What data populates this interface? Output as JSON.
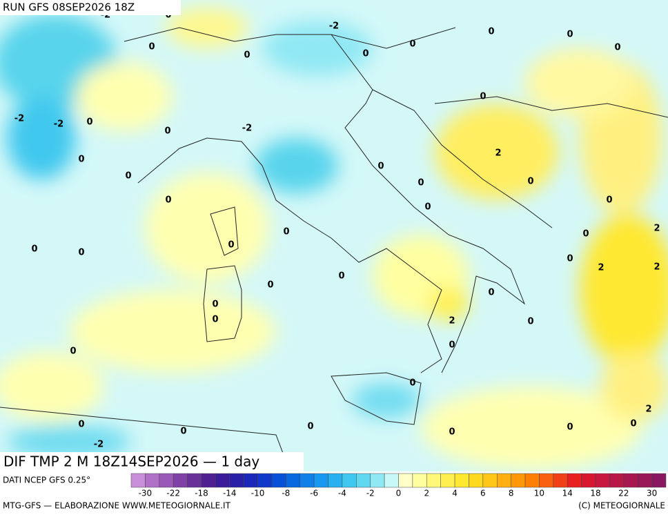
{
  "header": {
    "run": "RUN GFS 08SEP2026 18Z"
  },
  "map": {
    "title": "DIF TMP 2 M 18Z14SEP2026 — 1 day",
    "contour_labels": [
      "-2",
      "0",
      "-2",
      "0",
      "0",
      "0",
      "0",
      "0",
      "0",
      "0",
      "0",
      "-2",
      "-2",
      "0",
      "0",
      "-2",
      "2",
      "0",
      "0",
      "0",
      "0",
      "0",
      "0",
      "0",
      "0",
      "2",
      "0",
      "0",
      "0",
      "0",
      "0",
      "0",
      "2",
      "2",
      "0",
      "0",
      "0",
      "0",
      "0",
      "2",
      "0",
      "0",
      "0",
      "0",
      "2",
      "0",
      "0",
      "0",
      "0",
      "0",
      "0",
      "-2"
    ]
  },
  "legend": {
    "source": "DATI NCEP GFS 0.25°",
    "colors": [
      "#c78fd8",
      "#b070c8",
      "#9a58b8",
      "#8040a8",
      "#683098",
      "#502090",
      "#3c1c98",
      "#2a20a8",
      "#1c28b8",
      "#1038c8",
      "#0850d8",
      "#0868e0",
      "#1080e8",
      "#1898f0",
      "#28b0f0",
      "#40c8f0",
      "#60d8f0",
      "#90e8f4",
      "#c8f8f8",
      "#ffffc8",
      "#ffffa0",
      "#fff878",
      "#fff050",
      "#ffe830",
      "#ffd820",
      "#ffc818",
      "#ffb010",
      "#ff9808",
      "#ff8000",
      "#f86010",
      "#f04018",
      "#e82020",
      "#d81830",
      "#c81840",
      "#b81848",
      "#a81850",
      "#981858",
      "#881860"
    ],
    "ticks": [
      -30,
      -22,
      -18,
      -14,
      -10,
      -8,
      -6,
      -4,
      -2,
      0,
      2,
      4,
      6,
      8,
      10,
      14,
      18,
      22,
      30
    ]
  },
  "footer": {
    "left": "MTG-GFS — ELABORAZIONE WWW.METEOGIORNALE.IT",
    "right": "(C) METEOGIORNALE"
  }
}
